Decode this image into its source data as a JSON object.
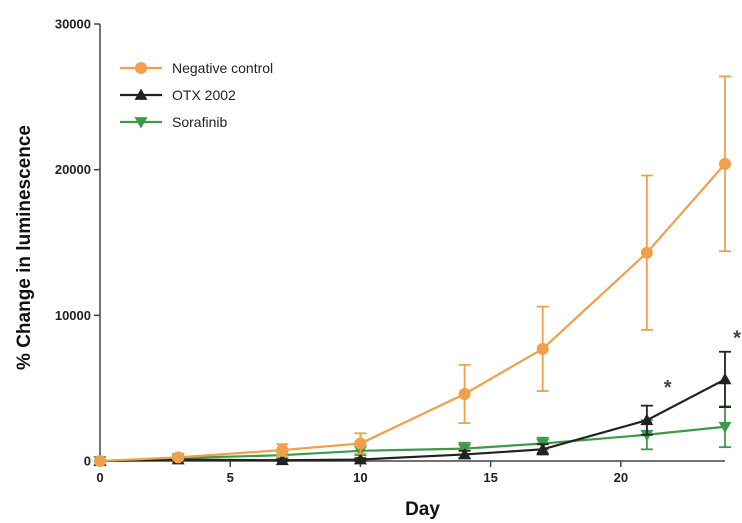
{
  "chart_data": {
    "type": "line",
    "xlabel": "Day",
    "ylabel": "% Change in luminescence",
    "xlim": [
      0,
      24
    ],
    "ylim": [
      0,
      30000
    ],
    "x_ticks": [
      0,
      5,
      10,
      15,
      20
    ],
    "y_ticks": [
      0,
      10000,
      20000,
      30000
    ],
    "x_tick_labels": [
      "0",
      "5",
      "10",
      "15",
      "20"
    ],
    "y_tick_labels": [
      "0",
      "10000",
      "20000",
      "30000"
    ],
    "legend_position": "top-left",
    "grid": false,
    "series": [
      {
        "name": "Negative control",
        "color": "#f0a04a",
        "marker": "circle",
        "x": [
          0,
          3,
          7,
          10,
          14,
          17,
          21,
          24
        ],
        "y": [
          0,
          250,
          750,
          1200,
          4600,
          7700,
          14300,
          20400
        ],
        "err": [
          0,
          150,
          400,
          700,
          2000,
          2900,
          5300,
          6000
        ]
      },
      {
        "name": "OTX 2002",
        "color": "#222222",
        "marker": "triangle-up",
        "x": [
          0,
          3,
          7,
          10,
          14,
          17,
          21,
          24
        ],
        "y": [
          0,
          100,
          50,
          100,
          450,
          800,
          2800,
          5600
        ],
        "err": [
          0,
          80,
          60,
          100,
          250,
          350,
          1000,
          1900
        ]
      },
      {
        "name": "Sorafinib",
        "color": "#3e9a48",
        "marker": "triangle-down",
        "x": [
          0,
          3,
          7,
          10,
          14,
          17,
          21,
          24
        ],
        "y": [
          0,
          200,
          400,
          700,
          850,
          1200,
          1800,
          2350
        ],
        "err": [
          0,
          100,
          200,
          300,
          400,
          400,
          1000,
          1400
        ]
      }
    ],
    "annotations": [
      {
        "text": "*",
        "x": 21.8,
        "y": 4600
      },
      {
        "text": "*",
        "x": 24.5,
        "y": 8000
      }
    ]
  }
}
